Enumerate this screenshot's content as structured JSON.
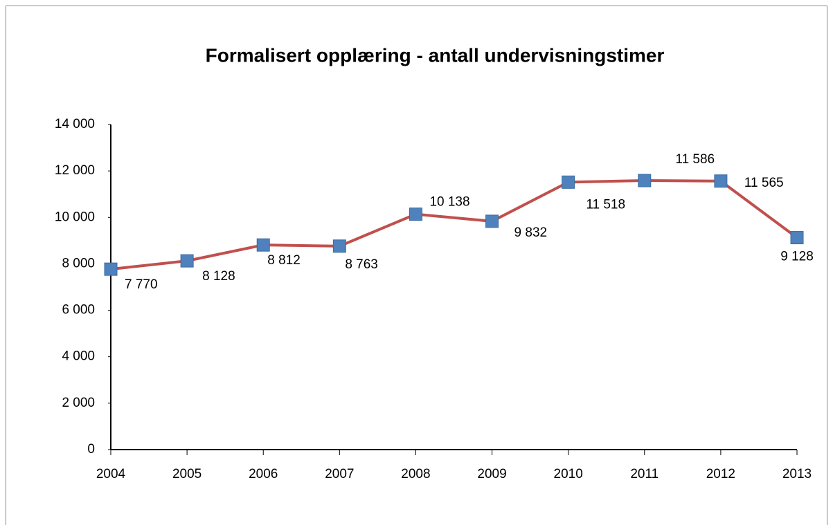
{
  "chart_data": {
    "type": "line",
    "title": "Formalisert opplæring - antall undervisningstimer",
    "categories": [
      "2004",
      "2005",
      "2006",
      "2007",
      "2008",
      "2009",
      "2010",
      "2011",
      "2012",
      "2013"
    ],
    "series": [
      {
        "color": "#c0504d",
        "marker_color": "#4f81bd",
        "values": [
          7770,
          8128,
          8812,
          8763,
          10138,
          9832,
          11518,
          11586,
          11565,
          9128
        ],
        "value_labels": [
          "7 770",
          "8 128",
          "8 812",
          "8 763",
          "10 138",
          "9 832",
          "11 518",
          "11 586",
          "11 565",
          "9 128"
        ]
      }
    ],
    "ylim": [
      0,
      14000
    ],
    "yticks": [
      0,
      {
        "value": 2000,
        "label": "2 000"
      },
      {
        "value": 4000,
        "label": "4 000"
      },
      {
        "value": 6000,
        "label": "6 000"
      },
      {
        "value": 8000,
        "label": "8 000"
      },
      {
        "value": 10000,
        "label": "10 000"
      },
      {
        "value": 12000,
        "label": "12 000"
      },
      {
        "value": 14000,
        "label": "14 000"
      }
    ],
    "grid": false
  }
}
